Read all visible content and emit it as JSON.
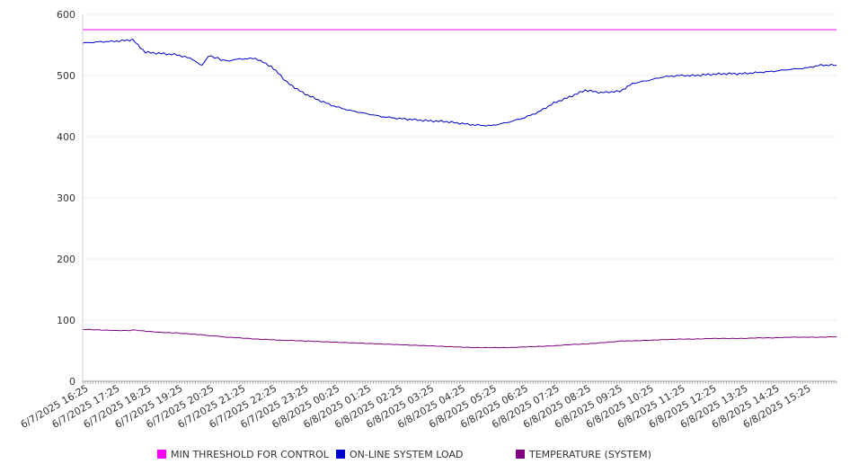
{
  "chart_data": {
    "type": "line",
    "title": "",
    "xlabel": "",
    "ylabel": "",
    "ylim": [
      0,
      600
    ],
    "yticks": [
      0,
      100,
      200,
      300,
      400,
      500,
      600
    ],
    "grid": true,
    "legend_position": "bottom",
    "x_tick_labels": [
      "6/7/2025 16:25",
      "6/7/2025 17:25",
      "6/7/2025 18:25",
      "6/7/2025 19:25",
      "6/7/2025 20:25",
      "6/7/2025 21:25",
      "6/7/2025 22:25",
      "6/7/2025 23:25",
      "6/8/2025 00:25",
      "6/8/2025 01:25",
      "6/8/2025 02:25",
      "6/8/2025 03:25",
      "6/8/2025 04:25",
      "6/8/2025 05:25",
      "6/8/2025 06:25",
      "6/8/2025 07:25",
      "6/8/2025 08:25",
      "6/8/2025 09:25",
      "6/8/2025 10:25",
      "6/8/2025 11:25",
      "6/8/2025 12:25",
      "6/8/2025 13:25",
      "6/8/2025 14:25",
      "6/8/2025 15:25"
    ],
    "x_hours": [
      0,
      0.5,
      1,
      1.5,
      1.6,
      2,
      2.5,
      3,
      3.5,
      3.8,
      4,
      4.2,
      4.4,
      4.6,
      5,
      5.5,
      6,
      6.3,
      6.5,
      7,
      7.5,
      8,
      8.5,
      9,
      9.5,
      10,
      10.5,
      11,
      11.5,
      12,
      12.5,
      13,
      13.5,
      14,
      14.5,
      15,
      15.5,
      16,
      16.5,
      17,
      17.2,
      17.5,
      18,
      18.5,
      19,
      19.5,
      20,
      20.5,
      21,
      21.5,
      22,
      22.5,
      23,
      23.5,
      24
    ],
    "series": [
      {
        "name": "MIN THRESHOLD FOR CONTROL",
        "color": "#ff00ff",
        "values": [
          575,
          575,
          575,
          575,
          575,
          575,
          575,
          575,
          575,
          575,
          575,
          575,
          575,
          575,
          575,
          575,
          575,
          575,
          575,
          575,
          575,
          575,
          575,
          575,
          575,
          575,
          575,
          575,
          575,
          575,
          575,
          575,
          575,
          575,
          575,
          575,
          575,
          575,
          575,
          575,
          575,
          575,
          575,
          575,
          575,
          575,
          575,
          575,
          575,
          575,
          575,
          575,
          575,
          575,
          575
        ]
      },
      {
        "name": "ON-LINE SYSTEM LOAD",
        "color": "#0000cc",
        "values": [
          553,
          555,
          556,
          558,
          558,
          538,
          536,
          534,
          527,
          516,
          532,
          530,
          526,
          524,
          527,
          528,
          515,
          500,
          489,
          472,
          460,
          450,
          443,
          438,
          433,
          430,
          428,
          426,
          425,
          422,
          419,
          418,
          423,
          430,
          440,
          455,
          465,
          476,
          472,
          474,
          476,
          487,
          492,
          498,
          500,
          500,
          502,
          503,
          503,
          505,
          507,
          510,
          512,
          517,
          517
        ]
      },
      {
        "name": "TEMPERATURE (SYSTEM)",
        "color": "#800080",
        "values": [
          85,
          84,
          83,
          83,
          84,
          82,
          80,
          79,
          77,
          76,
          75,
          74,
          73,
          72,
          71,
          69,
          68,
          67,
          67,
          66,
          65,
          64,
          63,
          62,
          61,
          60,
          59,
          58,
          57,
          56,
          55,
          55,
          55,
          56,
          57,
          58,
          60,
          61,
          63,
          65,
          66,
          66,
          67,
          68,
          69,
          69,
          70,
          70,
          70,
          71,
          71,
          72,
          72,
          72,
          73
        ]
      }
    ]
  }
}
